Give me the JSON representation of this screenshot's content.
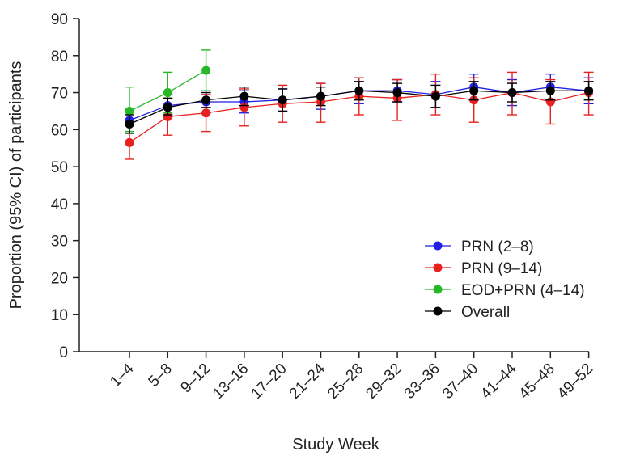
{
  "chart_data": {
    "type": "line",
    "xlabel": "Study Week",
    "ylabel": "Proportion (95% CI) of participants",
    "ylim": [
      0,
      90
    ],
    "yticks": [
      0,
      10,
      20,
      30,
      40,
      50,
      60,
      70,
      80,
      90
    ],
    "categories": [
      "1–4",
      "5–8",
      "9–12",
      "13–16",
      "17–20",
      "21–24",
      "25–28",
      "29–32",
      "33–36",
      "37–40",
      "41–44",
      "45–48",
      "49–52"
    ],
    "legend_position": "bottom-right",
    "grid": false,
    "series": [
      {
        "name": "PRN (2–8)",
        "color": "#1f1fe6",
        "values": [
          62.5,
          66.5,
          67.5,
          67.5,
          68.0,
          69.0,
          70.5,
          70.5,
          69.5,
          71.5,
          70.0,
          71.5,
          70.5
        ],
        "ci_low": [
          59.5,
          63.5,
          64.5,
          64.5,
          65.0,
          65.5,
          67.0,
          67.5,
          66.0,
          68.0,
          66.5,
          68.0,
          67.0
        ],
        "ci_high": [
          65.5,
          69.5,
          70.5,
          70.5,
          71.0,
          72.5,
          74.0,
          73.5,
          73.0,
          75.0,
          73.5,
          75.0,
          74.0
        ]
      },
      {
        "name": "PRN (9–14)",
        "color": "#e8211f",
        "values": [
          56.5,
          63.5,
          64.5,
          66.0,
          67.0,
          67.5,
          69.0,
          68.5,
          69.5,
          68.0,
          70.0,
          67.5,
          70.0
        ],
        "ci_low": [
          52.0,
          58.5,
          59.5,
          61.0,
          62.0,
          62.0,
          64.0,
          62.5,
          64.0,
          62.0,
          64.0,
          61.5,
          64.0
        ],
        "ci_high": [
          61.0,
          68.5,
          69.5,
          71.0,
          72.0,
          72.5,
          74.0,
          73.5,
          75.0,
          74.0,
          75.5,
          73.5,
          75.5
        ]
      },
      {
        "name": "EOD+PRN (4–14)",
        "color": "#27b827",
        "values": [
          65.0,
          70.0,
          76.0,
          null,
          null,
          null,
          null,
          null,
          null,
          null,
          null,
          null,
          null
        ],
        "ci_low": [
          59.5,
          64.5,
          70.5,
          null,
          null,
          null,
          null,
          null,
          null,
          null,
          null,
          null,
          null
        ],
        "ci_high": [
          71.5,
          75.5,
          81.5,
          null,
          null,
          null,
          null,
          null,
          null,
          null,
          null,
          null,
          null
        ]
      },
      {
        "name": "Overall",
        "color": "#000000",
        "values": [
          61.5,
          66.0,
          68.0,
          69.0,
          68.0,
          69.0,
          70.5,
          70.0,
          69.0,
          70.5,
          70.0,
          70.5,
          70.5
        ],
        "ci_low": [
          59.0,
          64.0,
          66.0,
          66.5,
          65.0,
          66.5,
          68.0,
          67.5,
          66.0,
          68.0,
          67.5,
          68.0,
          68.0
        ],
        "ci_high": [
          64.0,
          68.5,
          70.0,
          71.5,
          71.0,
          71.5,
          73.0,
          72.5,
          72.0,
          73.0,
          72.5,
          73.0,
          73.0
        ]
      }
    ]
  }
}
